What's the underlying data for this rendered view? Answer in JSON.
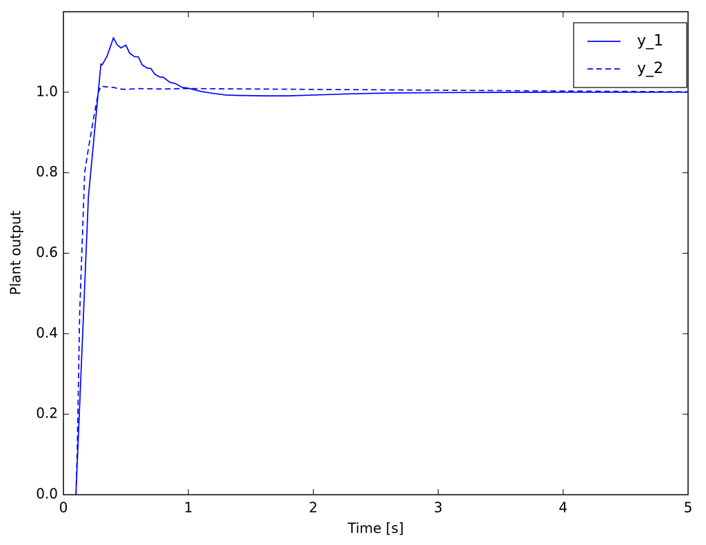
{
  "chart_data": {
    "type": "line",
    "xlabel": "Time [s]",
    "ylabel": "Plant output",
    "xlim": [
      0,
      5
    ],
    "xticks": [
      0,
      1,
      2,
      3,
      4,
      5
    ],
    "ylim": [
      0,
      1.2
    ],
    "yticks": [
      {
        "value": 0,
        "label": "0.0"
      },
      0.2,
      0.4,
      0.6,
      0.8,
      {
        "value": 1,
        "label": "1.0"
      }
    ],
    "legend": "upper right",
    "grid": false,
    "series": [
      {
        "name": "y_1",
        "color": "#0000ff",
        "linestyle": "solid",
        "x": [
          0.1,
          0.2,
          0.3,
          0.31,
          0.35,
          0.4,
          0.43,
          0.46,
          0.5,
          0.53,
          0.57,
          0.6,
          0.63,
          0.67,
          0.7,
          0.73,
          0.77,
          0.8,
          0.85,
          0.9,
          0.95,
          1.0,
          1.1,
          1.2,
          1.3,
          1.4,
          1.6,
          1.8,
          2.0,
          2.3,
          2.6,
          3.0,
          4.0,
          5.0
        ],
        "values": [
          0,
          0.74,
          1.07,
          1.068,
          1.09,
          1.135,
          1.118,
          1.11,
          1.117,
          1.097,
          1.088,
          1.088,
          1.068,
          1.06,
          1.059,
          1.045,
          1.038,
          1.037,
          1.025,
          1.021,
          1.012,
          1.01,
          1.002,
          0.997,
          0.993,
          0.992,
          0.991,
          0.991,
          0.993,
          0.996,
          0.998,
          0.999,
          1.0,
          1.0
        ]
      },
      {
        "name": "y_2",
        "color": "#0000ff",
        "linestyle": "dashed",
        "x": [
          0.1,
          0.11,
          0.13,
          0.17,
          0.2,
          0.25,
          0.28,
          0.3,
          0.35,
          0.4,
          0.45,
          0.5,
          0.6,
          0.8,
          1.0,
          1.5,
          2.0,
          3.0,
          4.0,
          5.0
        ],
        "values": [
          0,
          0.1,
          0.45,
          0.8,
          0.86,
          0.95,
          1.0,
          1.015,
          1.013,
          1.012,
          1.008,
          1.007,
          1.009,
          1.008,
          1.009,
          1.008,
          1.007,
          1.005,
          1.003,
          1.001
        ]
      }
    ]
  }
}
